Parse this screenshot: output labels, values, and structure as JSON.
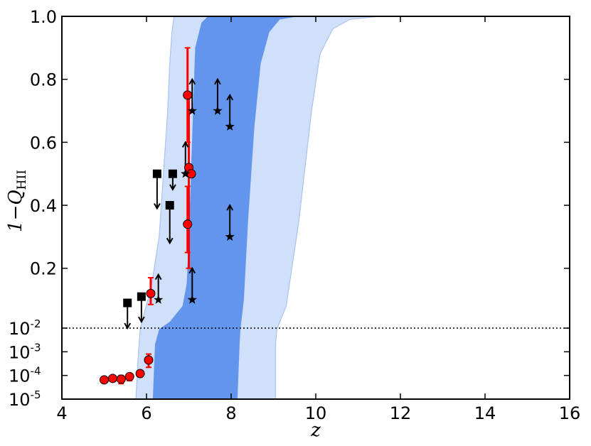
{
  "chart_data": {
    "type": "scatter",
    "xlabel": "z",
    "ylabel": "1−Q",
    "ylabel_subscript": "HII",
    "xlim": [
      4,
      16
    ],
    "x_ticks": [
      4,
      6,
      8,
      10,
      12,
      14,
      16
    ],
    "x_tick_labels": [
      "4",
      "6",
      "8",
      "10",
      "12",
      "14",
      "16"
    ],
    "y_scale": "piecewise: log10 from 1e-5 to 1e-2 (lower panel), linear from 1e-2 to 1.0 (upper panel)",
    "y_ticks_linear": [
      0.2,
      0.4,
      0.6,
      0.8,
      1.0
    ],
    "y_tick_labels_linear": [
      "0.2",
      "0.4",
      "0.6",
      "0.8",
      "1.0"
    ],
    "y_ticks_log": [
      -2,
      -3,
      -4,
      -5
    ],
    "y_tick_labels_log": [
      {
        "base": "10",
        "exp": "-2"
      },
      {
        "base": "10",
        "exp": "-3"
      },
      {
        "base": "10",
        "exp": "-4"
      },
      {
        "base": "10",
        "exp": "-5"
      }
    ],
    "reference_line": {
      "y": 0.01,
      "style": "dotted"
    },
    "colors": {
      "band_inner": "#6495ed",
      "band_outer": "#d0e0fa",
      "band_outer_edge": "#a9c2ef",
      "measurements": "#ff0000",
      "limits": "#000000"
    },
    "bands": {
      "outer_left": [
        [
          5.75,
          1e-05
        ],
        [
          5.8,
          0.0005
        ],
        [
          5.85,
          0.009
        ],
        [
          5.95,
          0.06
        ],
        [
          6.1,
          0.13
        ],
        [
          6.3,
          0.3
        ],
        [
          6.4,
          0.5
        ],
        [
          6.5,
          0.7
        ],
        [
          6.55,
          0.85
        ],
        [
          6.6,
          0.95
        ],
        [
          6.65,
          1.0
        ]
      ],
      "outer_right": [
        [
          9.05,
          1e-05
        ],
        [
          9.05,
          0.002
        ],
        [
          9.08,
          0.009
        ],
        [
          9.3,
          0.08
        ],
        [
          9.6,
          0.35
        ],
        [
          9.9,
          0.7
        ],
        [
          10.1,
          0.88
        ],
        [
          10.4,
          0.96
        ],
        [
          10.8,
          0.99
        ],
        [
          11.5,
          1.0
        ]
      ],
      "inner_left": [
        [
          6.15,
          1e-05
        ],
        [
          6.2,
          0.002
        ],
        [
          6.3,
          0.009
        ],
        [
          6.55,
          0.03
        ],
        [
          6.85,
          0.08
        ],
        [
          6.95,
          0.15
        ],
        [
          7.0,
          0.3
        ],
        [
          7.05,
          0.5
        ],
        [
          7.1,
          0.7
        ],
        [
          7.15,
          0.9
        ],
        [
          7.3,
          0.98
        ],
        [
          7.45,
          1.0
        ]
      ],
      "inner_right": [
        [
          8.15,
          1e-05
        ],
        [
          8.2,
          0.002
        ],
        [
          8.22,
          0.009
        ],
        [
          8.3,
          0.1
        ],
        [
          8.4,
          0.35
        ],
        [
          8.55,
          0.65
        ],
        [
          8.7,
          0.85
        ],
        [
          8.9,
          0.95
        ],
        [
          9.15,
          0.99
        ],
        [
          9.6,
          1.0
        ]
      ]
    },
    "series": [
      {
        "marker": "circle",
        "color": "#ff0000",
        "points": [
          {
            "x": 5.0,
            "y": 6.5e-05
          },
          {
            "x": 5.2,
            "y": 7.5e-05
          },
          {
            "x": 5.4,
            "y": 7e-05,
            "err": [
              4.5e-05,
              0.0001
            ]
          },
          {
            "x": 5.6,
            "y": 9e-05,
            "err": [
              6e-05,
              0.00012
            ]
          },
          {
            "x": 5.85,
            "y": 0.00012
          },
          {
            "x": 6.05,
            "y": 0.00045,
            "err": [
              0.00022,
              0.0008
            ]
          },
          {
            "x": 6.1,
            "y": 0.12,
            "err": [
              0.085,
              0.17
            ]
          },
          {
            "x": 6.97,
            "y": 0.75,
            "err": [
              0.6,
              0.9
            ]
          },
          {
            "x": 7.0,
            "y": 0.52,
            "err": [
              0.2,
              0.75
            ]
          },
          {
            "x": 7.06,
            "y": 0.5
          },
          {
            "x": 6.97,
            "y": 0.34,
            "err": [
              0.25,
              0.46
            ]
          }
        ]
      },
      {
        "marker": "square",
        "color": "#000000",
        "limit": "upper",
        "points": [
          {
            "x": 5.55,
            "y": 0.09,
            "to": 0.01
          },
          {
            "x": 5.88,
            "y": 0.11,
            "to": 0.03
          },
          {
            "x": 6.25,
            "y": 0.5,
            "to": 0.39
          },
          {
            "x": 6.62,
            "y": 0.5,
            "to": 0.45
          },
          {
            "x": 6.55,
            "y": 0.4,
            "to": 0.28
          }
        ]
      },
      {
        "marker": "star",
        "color": "#000000",
        "limit": "lower",
        "points": [
          {
            "x": 6.28,
            "y": 0.1,
            "to": 0.18
          },
          {
            "x": 6.92,
            "y": 0.5,
            "to": 0.6
          },
          {
            "x": 7.08,
            "y": 0.7,
            "to": 0.8
          },
          {
            "x": 7.08,
            "y": 0.1,
            "to": 0.2
          },
          {
            "x": 7.68,
            "y": 0.7,
            "to": 0.8
          },
          {
            "x": 7.97,
            "y": 0.65,
            "to": 0.75
          },
          {
            "x": 7.97,
            "y": 0.3,
            "to": 0.4
          }
        ]
      }
    ]
  }
}
